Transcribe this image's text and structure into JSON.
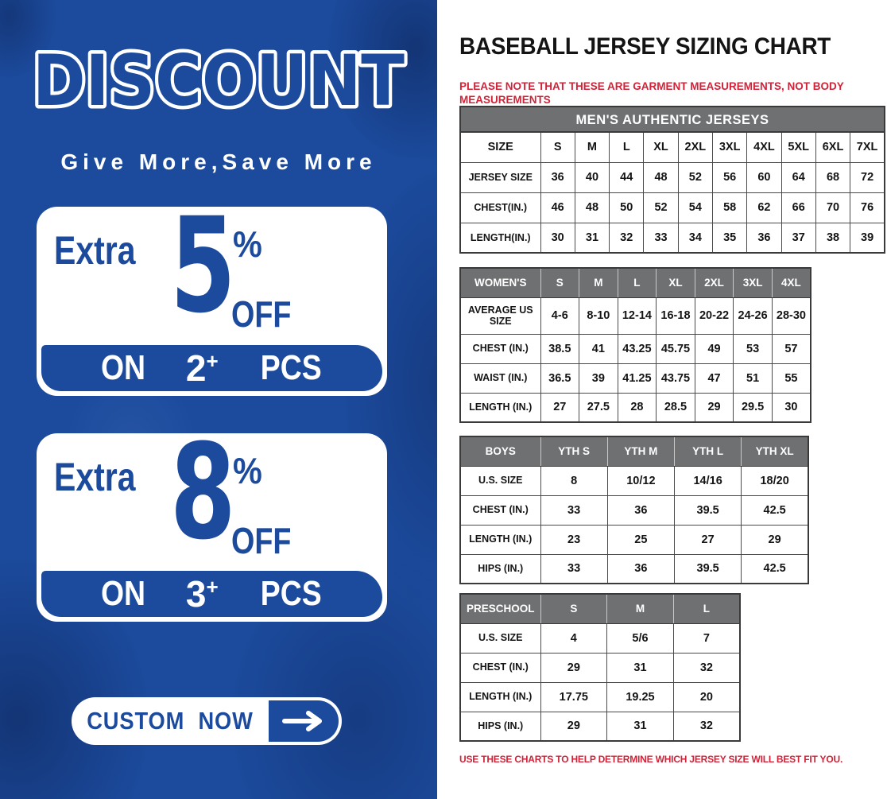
{
  "left_panel": {
    "background_color": "#1c4b9e",
    "title": "DISCOUNT",
    "subtitle": "Give More,Save More",
    "offers": [
      {
        "prefix": "Extra",
        "percent": "5",
        "percent_sign": "%",
        "off_label": "OFF",
        "on_label": "ON",
        "quantity": "2",
        "plus": "+",
        "pcs_label": "PCS"
      },
      {
        "prefix": "Extra",
        "percent": "8",
        "percent_sign": "%",
        "off_label": "OFF",
        "on_label": "ON",
        "quantity": "3",
        "plus": "+",
        "pcs_label": "PCS"
      }
    ],
    "cta": {
      "label": "CUSTOM NOW",
      "arrow_icon": "right-arrow"
    }
  },
  "right_panel": {
    "title": "BASEBALL JERSEY SIZING CHART",
    "top_note": "PLEASE NOTE THAT THESE ARE GARMENT MEASUREMENTS, NOT BODY MEASUREMENTS",
    "bottom_note": "USE THESE CHARTS TO HELP DETERMINE WHICH JERSEY SIZE WILL BEST FIT YOU.",
    "note_color": "#d12238",
    "header_color": "#6f7072",
    "tables": [
      {
        "id": "mens",
        "title": "MEN'S AUTHENTIC JERSEYS",
        "header": [
          "SIZE",
          "S",
          "M",
          "L",
          "XL",
          "2XL",
          "3XL",
          "4XL",
          "5XL",
          "6XL",
          "7XL"
        ],
        "rows": [
          [
            "JERSEY SIZE",
            "36",
            "40",
            "44",
            "48",
            "52",
            "56",
            "60",
            "64",
            "68",
            "72"
          ],
          [
            "CHEST(IN.)",
            "46",
            "48",
            "50",
            "52",
            "54",
            "58",
            "62",
            "66",
            "70",
            "76"
          ],
          [
            "LENGTH(IN.)",
            "30",
            "31",
            "32",
            "33",
            "34",
            "35",
            "36",
            "37",
            "38",
            "39"
          ]
        ]
      },
      {
        "id": "womens",
        "header": [
          "WOMEN'S",
          "S",
          "M",
          "L",
          "XL",
          "2XL",
          "3XL",
          "4XL"
        ],
        "rows": [
          [
            "AVERAGE US SIZE",
            "4-6",
            "8-10",
            "12-14",
            "16-18",
            "20-22",
            "24-26",
            "28-30"
          ],
          [
            "CHEST (IN.)",
            "38.5",
            "41",
            "43.25",
            "45.75",
            "49",
            "53",
            "57"
          ],
          [
            "WAIST (IN.)",
            "36.5",
            "39",
            "41.25",
            "43.75",
            "47",
            "51",
            "55"
          ],
          [
            "LENGTH (IN.)",
            "27",
            "27.5",
            "28",
            "28.5",
            "29",
            "29.5",
            "30"
          ]
        ]
      },
      {
        "id": "boys",
        "header": [
          "BOYS",
          "YTH S",
          "YTH M",
          "YTH L",
          "YTH XL"
        ],
        "rows": [
          [
            "U.S. SIZE",
            "8",
            "10/12",
            "14/16",
            "18/20"
          ],
          [
            "CHEST (IN.)",
            "33",
            "36",
            "39.5",
            "42.5"
          ],
          [
            "LENGTH (IN.)",
            "23",
            "25",
            "27",
            "29"
          ],
          [
            "HIPS (IN.)",
            "33",
            "36",
            "39.5",
            "42.5"
          ]
        ]
      },
      {
        "id": "preschool",
        "header": [
          "PRESCHOOL",
          "S",
          "M",
          "L"
        ],
        "rows": [
          [
            "U.S. SIZE",
            "4",
            "5/6",
            "7"
          ],
          [
            "CHEST (IN.)",
            "29",
            "31",
            "32"
          ],
          [
            "LENGTH (IN.)",
            "17.75",
            "19.25",
            "20"
          ],
          [
            "HIPS (IN.)",
            "29",
            "31",
            "32"
          ]
        ]
      }
    ]
  }
}
